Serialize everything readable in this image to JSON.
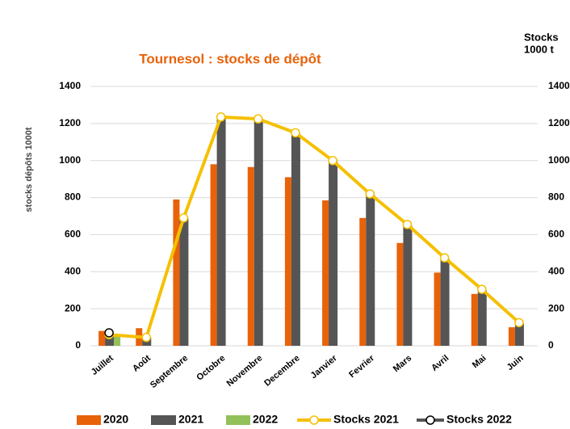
{
  "chart_data": {
    "type": "bar",
    "title": "Tournesol : stocks de dépôt",
    "y_label": "stocks dépôts 1000t",
    "y2_label": [
      "Stocks",
      "1000 t"
    ],
    "categories": [
      "Juillet",
      "Août",
      "Septembre",
      "Octobre",
      "Novembre",
      "Decembre",
      "Janvier",
      "Fevrier",
      "Mars",
      "Avril",
      "Mai",
      "Juin"
    ],
    "series": [
      {
        "name": "2020",
        "type": "bar",
        "color": "#e8620a",
        "values": [
          80,
          95,
          790,
          980,
          965,
          910,
          785,
          690,
          555,
          395,
          280,
          100
        ]
      },
      {
        "name": "2021",
        "type": "bar",
        "color": "#555555",
        "values": [
          60,
          45,
          690,
          1230,
          1220,
          1145,
          995,
          815,
          650,
          470,
          300,
          120
        ]
      },
      {
        "name": "2022",
        "type": "bar",
        "color": "#92c15a",
        "values": [
          60,
          null,
          null,
          null,
          null,
          null,
          null,
          null,
          null,
          null,
          null,
          null
        ]
      },
      {
        "name": "Stocks 2021",
        "type": "line",
        "axis": "y2",
        "color": "#f5c000",
        "values": [
          60,
          45,
          690,
          1235,
          1225,
          1150,
          1000,
          820,
          655,
          475,
          305,
          125
        ]
      },
      {
        "name": "Stocks 2022",
        "type": "line",
        "axis": "y2",
        "color": "#555555",
        "values": [
          70,
          null,
          null,
          null,
          null,
          null,
          null,
          null,
          null,
          null,
          null,
          null
        ]
      }
    ],
    "ylim": [
      0,
      1400
    ],
    "yticks": [
      0,
      200,
      400,
      600,
      800,
      1000,
      1200,
      1400
    ],
    "y2lim": [
      0,
      1400
    ],
    "y2ticks": [
      0,
      200,
      400,
      600,
      800,
      1000,
      1200,
      1400
    ],
    "grid": true,
    "legend": "bottom"
  }
}
